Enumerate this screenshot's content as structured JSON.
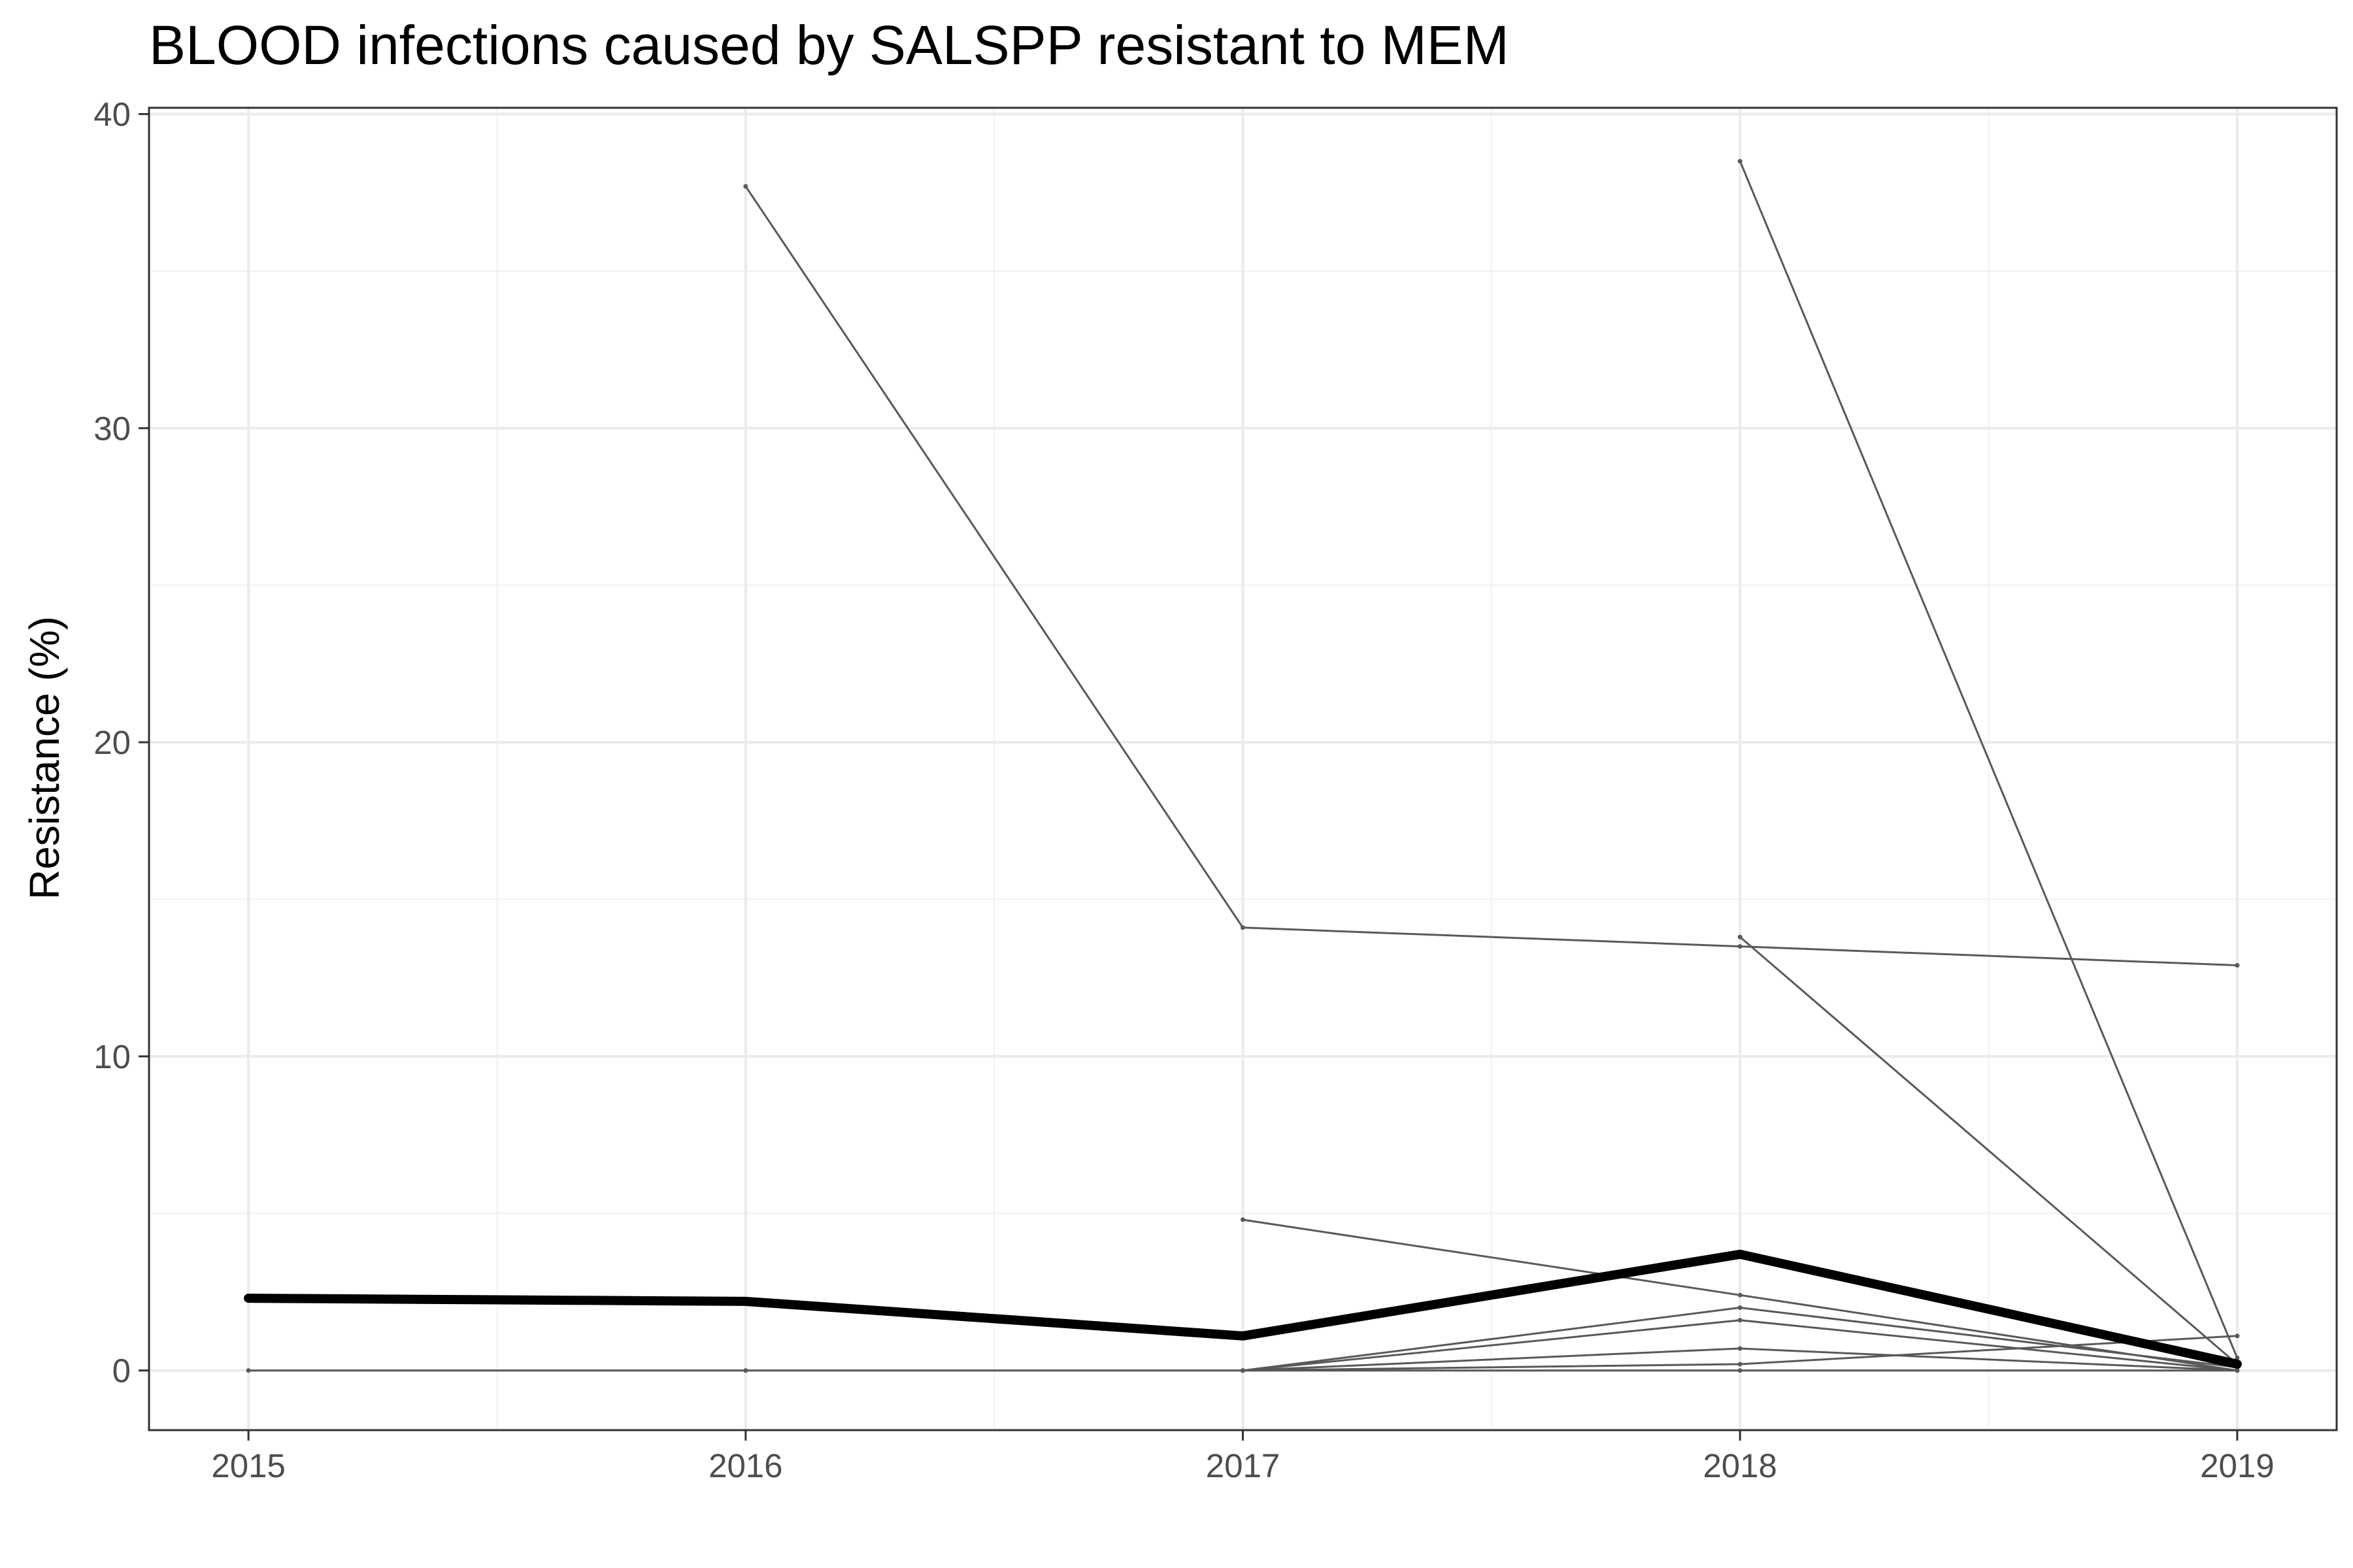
{
  "chart_data": {
    "type": "line",
    "title": "BLOOD infections caused by SALSPP resistant to MEM",
    "xlabel": "",
    "ylabel": "Resistance (%)",
    "x": [
      2015,
      2016,
      2017,
      2018,
      2019
    ],
    "xlim": [
      2014.8,
      2019.2
    ],
    "ylim": [
      -1.9,
      40.2
    ],
    "x_ticks": [
      "2015",
      "2016",
      "2017",
      "2018",
      "2019"
    ],
    "y_ticks": [
      "0",
      "10",
      "20",
      "30",
      "40"
    ],
    "grid": true,
    "legend": "none",
    "series": [
      {
        "values": [
          2.3,
          2.2,
          1.1,
          3.7,
          0.2
        ],
        "color": "#000000",
        "emphasis": true
      },
      {
        "values": [
          null,
          37.7,
          14.1,
          13.5,
          12.9
        ],
        "color": "#595959"
      },
      {
        "values": [
          null,
          null,
          null,
          38.5,
          0.4
        ],
        "color": "#595959"
      },
      {
        "values": [
          null,
          null,
          null,
          13.8,
          0.2
        ],
        "color": "#595959"
      },
      {
        "values": [
          null,
          null,
          4.8,
          2.4,
          0.0
        ],
        "color": "#595959"
      },
      {
        "values": [
          0.0,
          0.0,
          0.0,
          2.0,
          0.1
        ],
        "color": "#595959"
      },
      {
        "values": [
          null,
          null,
          0.0,
          1.6,
          0.0
        ],
        "color": "#595959"
      },
      {
        "values": [
          null,
          null,
          0.0,
          0.7,
          0.0
        ],
        "color": "#595959"
      },
      {
        "values": [
          null,
          null,
          0.0,
          0.2,
          1.1
        ],
        "color": "#595959"
      },
      {
        "values": [
          null,
          null,
          0.0,
          0.0,
          0.0
        ],
        "color": "#595959"
      }
    ]
  }
}
